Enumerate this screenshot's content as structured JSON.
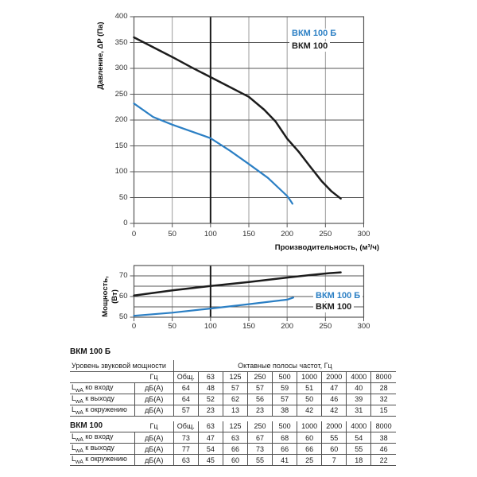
{
  "colors": {
    "series_blue": "#2b7fc4",
    "series_black": "#1c1c1c",
    "grid_minor": "#9b9b9b",
    "grid_major": "#565656",
    "grid_bold": "#181818",
    "table_border": "#4f4f4f",
    "text": "#1a1a1a"
  },
  "chart_data": [
    {
      "id": "pressure",
      "type": "line",
      "title": "",
      "ylabel": "Давление, ΔP (Па)",
      "xlabel": "Производительность, (м³/ч)",
      "xlim": [
        0,
        300
      ],
      "ylim": [
        0,
        400
      ],
      "xticks": [
        "0",
        "50",
        "100",
        "150",
        "200",
        "250",
        "300"
      ],
      "xtick_values": [
        0,
        50,
        100,
        150,
        200,
        250,
        300
      ],
      "yticks": [
        "400",
        "350",
        "300",
        "250",
        "200",
        "150",
        "100",
        "50",
        "0"
      ],
      "ytick_values": [
        400,
        350,
        300,
        250,
        200,
        150,
        100,
        50,
        0
      ],
      "ygrid": [
        0,
        50,
        100,
        150,
        200,
        250,
        300,
        350,
        400
      ],
      "xgrid": [
        0,
        50,
        100,
        150,
        200,
        250,
        300
      ],
      "bold_x_gridline": 100,
      "grid": true,
      "legend_position": "top-right-inside",
      "legend": [
        {
          "label": "ВКМ 100 Б",
          "color_key": "series_blue"
        },
        {
          "label": "ВКМ 100",
          "color_key": "series_black"
        }
      ],
      "series": [
        {
          "name": "ВКМ 100 Б",
          "color_key": "series_blue",
          "x": [
            0,
            25,
            50,
            75,
            100,
            125,
            150,
            175,
            195,
            200,
            204,
            207
          ],
          "y": [
            232,
            206,
            191,
            178,
            165,
            141,
            115,
            88,
            60,
            53,
            45,
            38
          ]
        },
        {
          "name": "ВКМ 100",
          "color_key": "series_black",
          "x": [
            0,
            25,
            50,
            75,
            100,
            125,
            150,
            170,
            185,
            200,
            215,
            230,
            245,
            258,
            270
          ],
          "y": [
            360,
            341,
            322,
            302,
            283,
            264,
            245,
            220,
            197,
            164,
            139,
            110,
            82,
            62,
            48
          ]
        }
      ]
    },
    {
      "id": "power",
      "type": "line",
      "title": "",
      "ylabel": "Мощность, (Вт)",
      "xlabel": "",
      "xlim": [
        0,
        300
      ],
      "ylim": [
        50,
        75
      ],
      "xticks": [
        "0",
        "50",
        "100",
        "150",
        "200",
        "250",
        "300"
      ],
      "xtick_values": [
        0,
        50,
        100,
        150,
        200,
        250,
        300
      ],
      "yticks": [
        "70",
        "60",
        "50"
      ],
      "ytick_values": [
        70,
        60,
        50
      ],
      "ygrid": [
        50,
        55,
        60,
        65,
        70,
        75
      ],
      "xgrid": [
        0,
        50,
        100,
        150,
        200,
        250,
        300
      ],
      "bold_x_gridline": 100,
      "grid": true,
      "legend_position": "right-inside",
      "legend": [
        {
          "label": "ВКМ 100 Б",
          "color_key": "series_blue"
        },
        {
          "label": "ВКМ 100",
          "color_key": "series_black"
        }
      ],
      "series": [
        {
          "name": "ВКМ 100 Б",
          "color_key": "series_blue",
          "x": [
            0,
            50,
            100,
            150,
            200,
            208
          ],
          "y": [
            50.7,
            52.2,
            54.2,
            56.3,
            58.5,
            59.5
          ]
        },
        {
          "name": "ВКМ 100",
          "color_key": "series_black",
          "x": [
            0,
            50,
            100,
            150,
            200,
            230,
            255,
            270
          ],
          "y": [
            60.5,
            63,
            65.1,
            67,
            69.2,
            70.4,
            71.3,
            71.7
          ]
        }
      ]
    }
  ],
  "sound_tables": [
    {
      "title": "ВКМ 100 Б",
      "group_header_left": "Уровень звуковой мощности",
      "group_header_right": "Октавные полосы частот, Гц",
      "unit_header": "Гц",
      "freq_headers": [
        "Общ.",
        "63",
        "125",
        "250",
        "500",
        "1000",
        "2000",
        "4000",
        "8000"
      ],
      "rows": [
        {
          "label_prefix": "L",
          "label_sub": "wA",
          "label_text": " ко входу",
          "unit": "дБ(А)",
          "values": [
            "64",
            "48",
            "57",
            "57",
            "59",
            "51",
            "47",
            "40",
            "28"
          ]
        },
        {
          "label_prefix": "L",
          "label_sub": "wA",
          "label_text": " к выходу",
          "unit": "дБ(А)",
          "values": [
            "64",
            "52",
            "62",
            "56",
            "57",
            "50",
            "46",
            "39",
            "32"
          ]
        },
        {
          "label_prefix": "L",
          "label_sub": "wA",
          "label_text": " к окружению",
          "unit": "дБ(А)",
          "values": [
            "57",
            "23",
            "13",
            "23",
            "38",
            "42",
            "42",
            "31",
            "15"
          ]
        }
      ]
    },
    {
      "title": "ВКМ 100",
      "unit_header": "Гц",
      "freq_headers": [
        "Общ.",
        "63",
        "125",
        "250",
        "500",
        "1000",
        "2000",
        "4000",
        "8000"
      ],
      "rows": [
        {
          "label_prefix": "L",
          "label_sub": "wA",
          "label_text": " ко входу",
          "unit": "дБ(А)",
          "values": [
            "73",
            "47",
            "63",
            "67",
            "68",
            "60",
            "55",
            "54",
            "38"
          ]
        },
        {
          "label_prefix": "L",
          "label_sub": "wA",
          "label_text": " к выходу",
          "unit": "дБ(А)",
          "values": [
            "77",
            "54",
            "66",
            "73",
            "66",
            "66",
            "60",
            "55",
            "46"
          ]
        },
        {
          "label_prefix": "L",
          "label_sub": "wA",
          "label_text": " к окружению",
          "unit": "дБ(А)",
          "values": [
            "63",
            "45",
            "60",
            "55",
            "41",
            "25",
            "7",
            "18",
            "22"
          ]
        }
      ]
    }
  ]
}
